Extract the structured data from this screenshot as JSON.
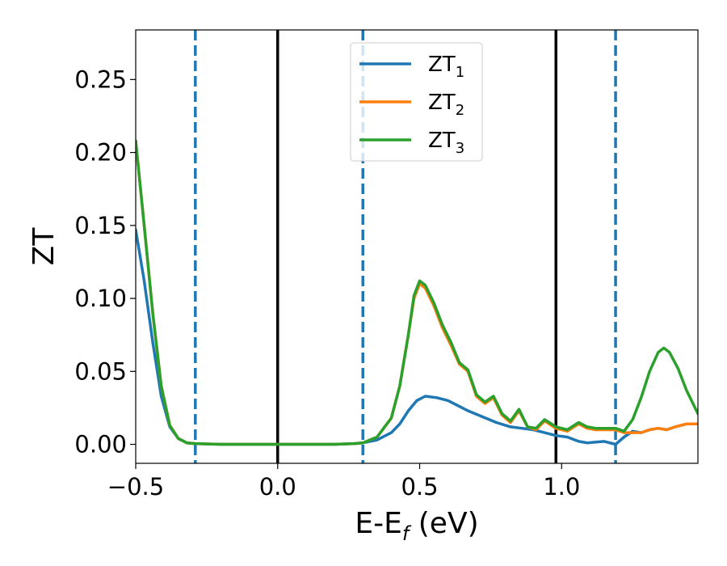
{
  "chart_data": {
    "type": "line",
    "xlabel_main": "E-E",
    "xlabel_sub": "f",
    "xlabel_unit": " (eV)",
    "ylabel": "ZT",
    "xlim": [
      -0.5,
      1.48
    ],
    "ylim": [
      -0.013,
      0.284
    ],
    "xticks": [
      {
        "value": -0.5,
        "label": "−0.5"
      },
      {
        "value": 0.0,
        "label": "0.0"
      },
      {
        "value": 0.5,
        "label": "0.5"
      },
      {
        "value": 1.0,
        "label": "1.0"
      }
    ],
    "yticks": [
      {
        "value": 0.0,
        "label": "0.00"
      },
      {
        "value": 0.05,
        "label": "0.05"
      },
      {
        "value": 0.1,
        "label": "0.10"
      },
      {
        "value": 0.15,
        "label": "0.15"
      },
      {
        "value": 0.2,
        "label": "0.20"
      },
      {
        "value": 0.25,
        "label": "0.25"
      }
    ],
    "vlines": [
      {
        "x": -0.29,
        "style": "dashed",
        "color": "#1f77b4"
      },
      {
        "x": 0.0,
        "style": "solid",
        "color": "#000000"
      },
      {
        "x": 0.3,
        "style": "dashed",
        "color": "#1f77b4"
      },
      {
        "x": 0.98,
        "style": "solid",
        "color": "#000000"
      },
      {
        "x": 1.19,
        "style": "dashed",
        "color": "#1f77b4"
      }
    ],
    "legend_position": "top-center",
    "series": [
      {
        "name_main": "ZT",
        "name_sub": "1",
        "color": "#1f77b4",
        "points": [
          [
            -0.5,
            0.147
          ],
          [
            -0.47,
            0.112
          ],
          [
            -0.44,
            0.07
          ],
          [
            -0.41,
            0.033
          ],
          [
            -0.38,
            0.012
          ],
          [
            -0.35,
            0.004
          ],
          [
            -0.32,
            0.001
          ],
          [
            -0.29,
            0.0005
          ],
          [
            -0.2,
            0.0
          ],
          [
            0.0,
            0.0
          ],
          [
            0.2,
            0.0
          ],
          [
            0.27,
            0.0005
          ],
          [
            0.3,
            0.001
          ],
          [
            0.35,
            0.003
          ],
          [
            0.4,
            0.008
          ],
          [
            0.43,
            0.014
          ],
          [
            0.46,
            0.023
          ],
          [
            0.49,
            0.03
          ],
          [
            0.52,
            0.033
          ],
          [
            0.56,
            0.032
          ],
          [
            0.6,
            0.03
          ],
          [
            0.63,
            0.027
          ],
          [
            0.67,
            0.023
          ],
          [
            0.72,
            0.019
          ],
          [
            0.77,
            0.015
          ],
          [
            0.82,
            0.012
          ],
          [
            0.86,
            0.011
          ],
          [
            0.9,
            0.01
          ],
          [
            0.94,
            0.008
          ],
          [
            0.98,
            0.006
          ],
          [
            1.02,
            0.005
          ],
          [
            1.06,
            0.002
          ],
          [
            1.09,
            0.001
          ],
          [
            1.12,
            0.0015
          ],
          [
            1.15,
            0.002
          ],
          [
            1.19,
            0.0
          ],
          [
            1.22,
            0.005
          ],
          [
            1.25,
            0.009
          ],
          [
            1.28,
            0.008
          ],
          [
            1.31,
            0.01
          ],
          [
            1.34,
            0.011
          ],
          [
            1.37,
            0.01
          ],
          [
            1.4,
            0.012
          ],
          [
            1.44,
            0.014
          ],
          [
            1.48,
            0.014
          ]
        ]
      },
      {
        "name_main": "ZT",
        "name_sub": "2",
        "color": "#ff7f0e",
        "points": [
          [
            -0.5,
            0.208
          ],
          [
            -0.47,
            0.15
          ],
          [
            -0.44,
            0.09
          ],
          [
            -0.41,
            0.04
          ],
          [
            -0.38,
            0.013
          ],
          [
            -0.35,
            0.004
          ],
          [
            -0.32,
            0.001
          ],
          [
            -0.29,
            0.0005
          ],
          [
            -0.2,
            0.0
          ],
          [
            0.0,
            0.0
          ],
          [
            0.2,
            0.0
          ],
          [
            0.27,
            0.0005
          ],
          [
            0.3,
            0.001
          ],
          [
            0.35,
            0.005
          ],
          [
            0.4,
            0.018
          ],
          [
            0.43,
            0.04
          ],
          [
            0.46,
            0.075
          ],
          [
            0.48,
            0.1
          ],
          [
            0.5,
            0.11
          ],
          [
            0.52,
            0.107
          ],
          [
            0.55,
            0.095
          ],
          [
            0.58,
            0.08
          ],
          [
            0.61,
            0.068
          ],
          [
            0.64,
            0.055
          ],
          [
            0.67,
            0.05
          ],
          [
            0.7,
            0.033
          ],
          [
            0.73,
            0.028
          ],
          [
            0.76,
            0.032
          ],
          [
            0.79,
            0.02
          ],
          [
            0.82,
            0.015
          ],
          [
            0.85,
            0.023
          ],
          [
            0.88,
            0.012
          ],
          [
            0.91,
            0.01
          ],
          [
            0.94,
            0.016
          ],
          [
            0.98,
            0.011
          ],
          [
            1.02,
            0.009
          ],
          [
            1.06,
            0.014
          ],
          [
            1.09,
            0.011
          ],
          [
            1.12,
            0.01
          ],
          [
            1.15,
            0.01
          ],
          [
            1.19,
            0.01
          ],
          [
            1.22,
            0.008
          ],
          [
            1.25,
            0.008
          ],
          [
            1.28,
            0.008
          ],
          [
            1.31,
            0.01
          ],
          [
            1.34,
            0.011
          ],
          [
            1.37,
            0.01
          ],
          [
            1.4,
            0.012
          ],
          [
            1.44,
            0.014
          ],
          [
            1.48,
            0.014
          ]
        ]
      },
      {
        "name_main": "ZT",
        "name_sub": "3",
        "color": "#2ca02c",
        "points": [
          [
            -0.5,
            0.208
          ],
          [
            -0.47,
            0.15
          ],
          [
            -0.44,
            0.09
          ],
          [
            -0.41,
            0.04
          ],
          [
            -0.38,
            0.013
          ],
          [
            -0.35,
            0.004
          ],
          [
            -0.32,
            0.001
          ],
          [
            -0.29,
            0.0005
          ],
          [
            -0.2,
            0.0
          ],
          [
            0.0,
            0.0
          ],
          [
            0.2,
            0.0
          ],
          [
            0.27,
            0.0005
          ],
          [
            0.3,
            0.001
          ],
          [
            0.35,
            0.005
          ],
          [
            0.4,
            0.018
          ],
          [
            0.43,
            0.04
          ],
          [
            0.46,
            0.075
          ],
          [
            0.48,
            0.102
          ],
          [
            0.5,
            0.112
          ],
          [
            0.52,
            0.109
          ],
          [
            0.55,
            0.097
          ],
          [
            0.58,
            0.082
          ],
          [
            0.61,
            0.07
          ],
          [
            0.64,
            0.056
          ],
          [
            0.67,
            0.051
          ],
          [
            0.7,
            0.034
          ],
          [
            0.73,
            0.029
          ],
          [
            0.76,
            0.033
          ],
          [
            0.79,
            0.021
          ],
          [
            0.82,
            0.016
          ],
          [
            0.85,
            0.024
          ],
          [
            0.88,
            0.012
          ],
          [
            0.91,
            0.011
          ],
          [
            0.94,
            0.017
          ],
          [
            0.98,
            0.012
          ],
          [
            1.02,
            0.01
          ],
          [
            1.06,
            0.015
          ],
          [
            1.09,
            0.012
          ],
          [
            1.12,
            0.011
          ],
          [
            1.15,
            0.011
          ],
          [
            1.19,
            0.011
          ],
          [
            1.22,
            0.009
          ],
          [
            1.25,
            0.017
          ],
          [
            1.28,
            0.032
          ],
          [
            1.31,
            0.05
          ],
          [
            1.34,
            0.063
          ],
          [
            1.36,
            0.066
          ],
          [
            1.38,
            0.063
          ],
          [
            1.41,
            0.052
          ],
          [
            1.44,
            0.037
          ],
          [
            1.48,
            0.021
          ]
        ]
      }
    ]
  }
}
